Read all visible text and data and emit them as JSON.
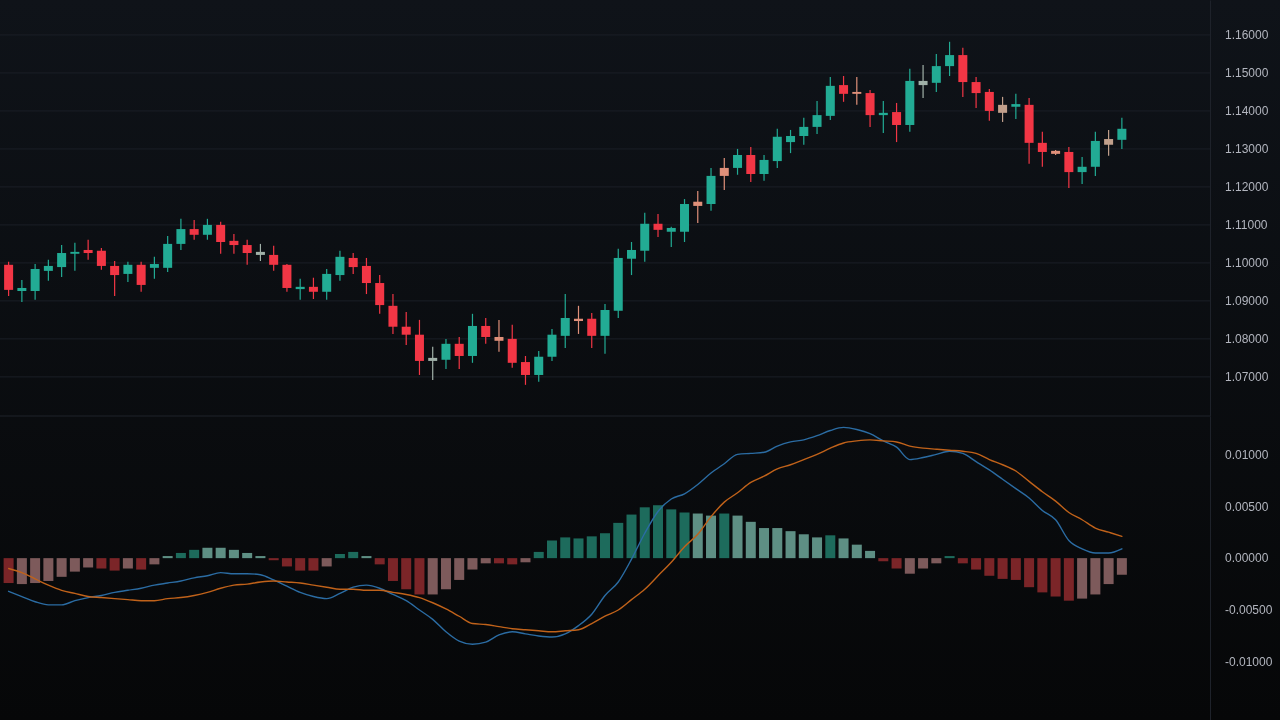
{
  "chart_data": [
    {
      "type": "candlestick",
      "categories": [
        null,
        null,
        null,
        null,
        null,
        null,
        null,
        null,
        null,
        null,
        null,
        null,
        null,
        null,
        null,
        null,
        null,
        null,
        null,
        null,
        null,
        null,
        null,
        null,
        null,
        null,
        null,
        null,
        null,
        null,
        null,
        null,
        null,
        null,
        null,
        null,
        null,
        null,
        null,
        null,
        null,
        null,
        null,
        null,
        null,
        null,
        null,
        null,
        null,
        null,
        null,
        null,
        null,
        null,
        null,
        null,
        null,
        null,
        null,
        null,
        null,
        null,
        null,
        null,
        null,
        null,
        null,
        null,
        null,
        null,
        null,
        null,
        null,
        null,
        null,
        null,
        null,
        null,
        null,
        null,
        null,
        null,
        null,
        null,
        null,
        null,
        null,
        null,
        null,
        null,
        null
      ],
      "ohlc": [
        [
          1.0995,
          1.1003,
          1.0913,
          1.0929
        ],
        [
          1.0926,
          1.0955,
          1.0897,
          1.0934
        ],
        [
          1.0926,
          1.0997,
          1.0903,
          1.0984
        ],
        [
          1.0979,
          1.1008,
          1.0953,
          1.0992
        ],
        [
          1.0989,
          1.1047,
          1.0963,
          1.1026
        ],
        [
          1.1024,
          1.1053,
          1.0979,
          1.1029
        ],
        [
          1.1034,
          1.1061,
          1.1008,
          1.1026
        ],
        [
          1.1032,
          1.1039,
          1.0982,
          1.0992
        ],
        [
          1.0992,
          1.1005,
          1.0913,
          1.0968
        ],
        [
          1.0971,
          1.1003,
          1.095,
          1.0995
        ],
        [
          1.0995,
          1.1003,
          1.0924,
          1.0942
        ],
        [
          1.0987,
          1.1016,
          1.0958,
          1.0997
        ],
        [
          1.0987,
          1.1071,
          1.0976,
          1.105
        ],
        [
          1.105,
          1.1116,
          1.1034,
          1.1089
        ],
        [
          1.1089,
          1.1113,
          1.1061,
          1.1074
        ],
        [
          1.1074,
          1.1116,
          1.1061,
          1.11
        ],
        [
          1.11,
          1.1108,
          1.1024,
          1.1055
        ],
        [
          1.1058,
          1.1076,
          1.1024,
          1.1047
        ],
        [
          1.1047,
          1.1061,
          1.0995,
          1.1026
        ],
        [
          1.1029,
          1.105,
          1.1005,
          1.1021
        ],
        [
          1.1021,
          1.1045,
          1.0979,
          1.0995
        ],
        [
          1.0995,
          1.0997,
          1.0924,
          1.0934
        ],
        [
          1.0931,
          1.0958,
          1.0903,
          1.0937
        ],
        [
          1.0937,
          1.0961,
          1.0905,
          1.0924
        ],
        [
          1.0924,
          1.0984,
          1.0903,
          1.0971
        ],
        [
          1.0968,
          1.1032,
          1.0953,
          1.1016
        ],
        [
          1.1013,
          1.1026,
          1.0971,
          1.0989
        ],
        [
          1.0992,
          1.1013,
          1.0918,
          1.0947
        ],
        [
          1.0947,
          1.0968,
          1.0866,
          1.0889
        ],
        [
          1.0887,
          1.0918,
          1.0813,
          1.0832
        ],
        [
          1.0832,
          1.0871,
          1.0784,
          1.0811
        ],
        [
          1.0811,
          1.085,
          1.0705,
          1.0742
        ],
        [
          1.0742,
          1.0779,
          1.0692,
          1.075
        ],
        [
          1.0745,
          1.08,
          1.0721,
          1.0787
        ],
        [
          1.0787,
          1.0805,
          1.0721,
          1.0755
        ],
        [
          1.0755,
          1.0866,
          1.0737,
          1.0834
        ],
        [
          1.0834,
          1.0855,
          1.0787,
          1.0805
        ],
        [
          1.0805,
          1.085,
          1.0766,
          1.0795
        ],
        [
          1.08,
          1.0837,
          1.0724,
          1.0737
        ],
        [
          1.0739,
          1.0755,
          1.0679,
          1.0705
        ],
        [
          1.0705,
          1.0768,
          1.0687,
          1.0753
        ],
        [
          1.0753,
          1.0826,
          1.0742,
          1.0811
        ],
        [
          1.0808,
          1.0918,
          1.0776,
          1.0855
        ],
        [
          1.0853,
          1.0887,
          1.0813,
          1.0847
        ],
        [
          1.0853,
          1.0868,
          1.0776,
          1.0808
        ],
        [
          1.0808,
          1.0892,
          1.0761,
          1.0876
        ],
        [
          1.0874,
          1.1037,
          1.0855,
          1.1013
        ],
        [
          1.1011,
          1.1055,
          1.0968,
          1.1034
        ],
        [
          1.1032,
          1.1132,
          1.1003,
          1.1103
        ],
        [
          1.1103,
          1.1129,
          1.1068,
          1.1087
        ],
        [
          1.1082,
          1.1095,
          1.1042,
          1.1092
        ],
        [
          1.1082,
          1.1168,
          1.1055,
          1.1155
        ],
        [
          1.1161,
          1.1189,
          1.1105,
          1.115
        ],
        [
          1.1155,
          1.125,
          1.1137,
          1.1229
        ],
        [
          1.125,
          1.1276,
          1.1192,
          1.1229
        ],
        [
          1.125,
          1.13,
          1.1232,
          1.1284
        ],
        [
          1.1284,
          1.1305,
          1.1213,
          1.1234
        ],
        [
          1.1234,
          1.1284,
          1.1216,
          1.1271
        ],
        [
          1.1268,
          1.1353,
          1.125,
          1.1332
        ],
        [
          1.1318,
          1.135,
          1.1289,
          1.1334
        ],
        [
          1.1334,
          1.1382,
          1.1311,
          1.1358
        ],
        [
          1.1358,
          1.1426,
          1.1339,
          1.1389
        ],
        [
          1.1387,
          1.1489,
          1.1376,
          1.1466
        ],
        [
          1.1468,
          1.1492,
          1.1424,
          1.1445
        ],
        [
          1.145,
          1.1489,
          1.1416,
          1.1445
        ],
        [
          1.1447,
          1.1455,
          1.1358,
          1.1389
        ],
        [
          1.1389,
          1.1426,
          1.1342,
          1.1395
        ],
        [
          1.1397,
          1.1421,
          1.1318,
          1.1363
        ],
        [
          1.1363,
          1.1511,
          1.1345,
          1.1479
        ],
        [
          1.1468,
          1.1521,
          1.1434,
          1.1479
        ],
        [
          1.1474,
          1.155,
          1.145,
          1.1518
        ],
        [
          1.1518,
          1.1582,
          1.1492,
          1.1547
        ],
        [
          1.1547,
          1.1566,
          1.1437,
          1.1476
        ],
        [
          1.1476,
          1.1489,
          1.1408,
          1.1447
        ],
        [
          1.145,
          1.1458,
          1.1374,
          1.14
        ],
        [
          1.1416,
          1.1437,
          1.1371,
          1.1395
        ],
        [
          1.1411,
          1.1445,
          1.1379,
          1.1418
        ],
        [
          1.1416,
          1.1434,
          1.1261,
          1.1316
        ],
        [
          1.1316,
          1.1345,
          1.1253,
          1.1292
        ],
        [
          1.1295,
          1.1297,
          1.1284,
          1.1287
        ],
        [
          1.1292,
          1.1305,
          1.1197,
          1.1239
        ],
        [
          1.1239,
          1.1279,
          1.1208,
          1.1253
        ],
        [
          1.1253,
          1.1345,
          1.1229,
          1.1321
        ],
        [
          1.1311,
          1.135,
          1.1282,
          1.1326
        ],
        [
          1.1324,
          1.1382,
          1.13,
          1.1353
        ],
        null,
        null,
        null,
        null,
        null,
        null
      ],
      "colors": [
        "#f23645",
        "#22ab94",
        "#22ab94",
        "#22ab94",
        "#22ab94",
        "#22ab94",
        "#f23645",
        "#f23645",
        "#f23645",
        "#22ab94",
        "#f23645",
        "#22ab94",
        "#22ab94",
        "#22ab94",
        "#f23645",
        "#22ab94",
        "#f23645",
        "#f23645",
        "#f23645",
        "#a0b0a8",
        "#f23645",
        "#f23645",
        "#22ab94",
        "#f23645",
        "#22ab94",
        "#22ab94",
        "#f23645",
        "#f23645",
        "#f23645",
        "#f23645",
        "#f23645",
        "#f23645",
        "#a0b0a8",
        "#22ab94",
        "#f23645",
        "#22ab94",
        "#f23645",
        "#e0907a",
        "#f23645",
        "#f23645",
        "#22ab94",
        "#22ab94",
        "#22ab94",
        "#e0907a",
        "#f23645",
        "#22ab94",
        "#22ab94",
        "#22ab94",
        "#22ab94",
        "#f23645",
        "#22ab94",
        "#22ab94",
        "#e0907a",
        "#22ab94",
        "#e0907a",
        "#22ab94",
        "#f23645",
        "#22ab94",
        "#22ab94",
        "#22ab94",
        "#22ab94",
        "#22ab94",
        "#22ab94",
        "#f23645",
        "#e0907a",
        "#f23645",
        "#22ab94",
        "#f23645",
        "#22ab94",
        "#a0b0a8",
        "#22ab94",
        "#22ab94",
        "#f23645",
        "#f23645",
        "#f23645",
        "#c2a08c",
        "#22ab94",
        "#f23645",
        "#f23645",
        "#e0907a",
        "#f23645",
        "#22ab94",
        "#22ab94",
        "#c2a08c",
        "#22ab94",
        null,
        null,
        null,
        null,
        null,
        null
      ],
      "ylim": [
        1.0597,
        1.1692
      ],
      "yticks": [
        {
          "value": 1.07,
          "label": "1.07000"
        },
        {
          "value": 1.08,
          "label": "1.08000"
        },
        {
          "value": 1.09,
          "label": "1.09000"
        },
        {
          "value": 1.1,
          "label": "1.10000"
        },
        {
          "value": 1.11,
          "label": "1.11000"
        },
        {
          "value": 1.12,
          "label": "1.12000"
        },
        {
          "value": 1.13,
          "label": "1.13000"
        },
        {
          "value": 1.14,
          "label": "1.14000"
        },
        {
          "value": 1.15,
          "label": "1.15000"
        },
        {
          "value": 1.16,
          "label": "1.16000"
        }
      ],
      "grid": "y",
      "tick_labels": "y"
    },
    {
      "type": "bar",
      "categories": [
        null,
        null,
        null,
        null,
        null,
        null,
        null,
        null,
        null,
        null,
        null,
        null,
        null,
        null,
        null,
        null,
        null,
        null,
        null,
        null,
        null,
        null,
        null,
        null,
        null,
        null,
        null,
        null,
        null,
        null,
        null,
        null,
        null,
        null,
        null,
        null,
        null,
        null,
        null,
        null,
        null,
        null,
        null,
        null,
        null,
        null,
        null,
        null,
        null,
        null,
        null,
        null,
        null,
        null,
        null,
        null,
        null,
        null,
        null,
        null,
        null,
        null,
        null,
        null,
        null,
        null,
        null,
        null,
        null,
        null,
        null,
        null,
        null,
        null,
        null,
        null,
        null,
        null,
        null,
        null,
        null,
        null,
        null,
        null,
        null,
        null,
        null,
        null,
        null,
        null,
        null
      ],
      "series": [
        {
          "type": "bar",
          "colors": [
            "#7b2528",
            "#7d5a5b",
            "#7d5a5b",
            "#7d5a5b",
            "#7d5a5b",
            "#7d5a5b",
            "#7d5a5b",
            "#7b2528",
            "#7b2528",
            "#7d5a5b",
            "#7b2528",
            "#7d5a5b",
            "#5e8f84",
            "#1d6b5c",
            "#1d6b5c",
            "#5e8f84",
            "#5e8f84",
            "#5e8f84",
            "#5e8f84",
            "#5e8f84",
            "#7b2528",
            "#7b2528",
            "#7b2528",
            "#7b2528",
            "#7d5a5b",
            "#1d6b5c",
            "#1d6b5c",
            "#5e8f84",
            "#7b2528",
            "#7b2528",
            "#7b2528",
            "#7b2528",
            "#7d5a5b",
            "#7d5a5b",
            "#7d5a5b",
            "#7d5a5b",
            "#7d5a5b",
            "#7b2528",
            "#7b2528",
            "#7d5a5b",
            "#1d6b5c",
            "#1d6b5c",
            "#1d6b5c",
            "#1d6b5c",
            "#1d6b5c",
            "#1d6b5c",
            "#1d6b5c",
            "#1d6b5c",
            "#1d6b5c",
            "#1d6b5c",
            "#1d6b5c",
            "#1d6b5c",
            "#5e8f84",
            "#5e8f84",
            "#1d6b5c",
            "#5e8f84",
            "#5e8f84",
            "#5e8f84",
            "#5e8f84",
            "#5e8f84",
            "#5e8f84",
            "#5e8f84",
            "#1d6b5c",
            "#5e8f84",
            "#5e8f84",
            "#5e8f84",
            "#7b2528",
            "#7b2528",
            "#7d5a5b",
            "#7d5a5b",
            "#7d5a5b",
            "#1d6b5c",
            "#7b2528",
            "#7b2528",
            "#7b2528",
            "#7b2528",
            "#7b2528",
            "#7b2528",
            "#7b2528",
            "#7b2528",
            "#7b2528",
            "#7d5a5b",
            "#7d5a5b",
            "#7d5a5b",
            "#7d5a5b",
            null,
            null,
            null,
            null,
            null,
            null
          ],
          "values": [
            -0.0024,
            -0.0025,
            -0.0024,
            -0.0022,
            -0.0018,
            -0.0013,
            -0.0009,
            -0.001,
            -0.0012,
            -0.001,
            -0.0011,
            -0.0006,
            0.0002,
            0.0005,
            0.0008,
            0.001,
            0.001,
            0.0008,
            0.0005,
            0.0002,
            -0.0002,
            -0.0008,
            -0.0012,
            -0.0012,
            -0.0008,
            0.0004,
            0.0006,
            0.0002,
            -0.0006,
            -0.0022,
            -0.003,
            -0.0035,
            -0.0035,
            -0.003,
            -0.0021,
            -0.0011,
            -0.0005,
            -0.0005,
            -0.0006,
            -0.0004,
            0.0006,
            0.0017,
            0.002,
            0.0019,
            0.0021,
            0.0024,
            0.0034,
            0.0042,
            0.0049,
            0.0051,
            0.0047,
            0.0044,
            0.0043,
            0.0041,
            0.0043,
            0.0041,
            0.0035,
            0.0029,
            0.0029,
            0.0026,
            0.0023,
            0.002,
            0.0022,
            0.0019,
            0.0013,
            0.0007,
            -0.0003,
            -0.001,
            -0.0015,
            -0.001,
            -0.0005,
            0.0002,
            -0.0005,
            -0.0011,
            -0.0017,
            -0.002,
            -0.0021,
            -0.0028,
            -0.0033,
            -0.0037,
            -0.0041,
            -0.0039,
            -0.0035,
            -0.0025,
            -0.0016,
            null,
            null,
            null,
            null,
            null,
            null
          ]
        },
        {
          "type": "line",
          "color": "#2b6ca3",
          "values": [
            -0.0032,
            -0.0037,
            -0.0042,
            -0.0045,
            -0.0045,
            -0.0041,
            -0.0038,
            -0.0036,
            -0.0033,
            -0.0031,
            -0.0029,
            -0.0026,
            -0.0024,
            -0.0022,
            -0.0019,
            -0.0017,
            -0.0014,
            -0.0015,
            -0.0015,
            -0.0016,
            -0.0021,
            -0.0027,
            -0.0033,
            -0.0037,
            -0.0039,
            -0.0034,
            -0.0028,
            -0.0026,
            -0.0029,
            -0.0035,
            -0.0041,
            -0.005,
            -0.0059,
            -0.0071,
            -0.008,
            -0.0083,
            -0.0081,
            -0.0074,
            -0.0071,
            -0.0073,
            -0.0075,
            -0.0076,
            -0.0073,
            -0.0065,
            -0.0054,
            -0.0036,
            -0.0023,
            -0.0001,
            0.0024,
            0.0045,
            0.0057,
            0.0062,
            0.0071,
            0.0082,
            0.0091,
            0.01,
            0.0101,
            0.0102,
            0.0108,
            0.0112,
            0.0114,
            0.0118,
            0.0123,
            0.0126,
            0.0124,
            0.012,
            0.0113,
            0.0107,
            0.0095,
            0.0097,
            0.01,
            0.0103,
            0.0101,
            0.0093,
            0.0085,
            0.0076,
            0.0067,
            0.0058,
            0.0046,
            0.0037,
            0.0017,
            0.0009,
            0.0005,
            0.0005,
            0.0009,
            null,
            null,
            null,
            null,
            null,
            null
          ]
        },
        {
          "type": "line",
          "color": "#c0621a",
          "values": [
            -0.001,
            -0.0014,
            -0.002,
            -0.0026,
            -0.0031,
            -0.0034,
            -0.0037,
            -0.0038,
            -0.0039,
            -0.004,
            -0.0041,
            -0.0041,
            -0.0039,
            -0.0038,
            -0.0036,
            -0.0033,
            -0.0029,
            -0.0026,
            -0.0025,
            -0.0023,
            -0.0022,
            -0.0023,
            -0.0024,
            -0.0026,
            -0.0028,
            -0.003,
            -0.003,
            -0.0031,
            -0.0031,
            -0.0033,
            -0.0035,
            -0.0038,
            -0.0043,
            -0.0049,
            -0.0056,
            -0.0063,
            -0.0064,
            -0.0066,
            -0.0068,
            -0.0069,
            -0.007,
            -0.0071,
            -0.007,
            -0.0069,
            -0.0063,
            -0.0056,
            -0.005,
            -0.004,
            -0.003,
            -0.0017,
            -0.0004,
            0.0011,
            0.0023,
            0.004,
            0.0054,
            0.0063,
            0.0073,
            0.0079,
            0.0086,
            0.009,
            0.0095,
            0.01,
            0.0106,
            0.0111,
            0.0113,
            0.0114,
            0.0113,
            0.0112,
            0.0108,
            0.0106,
            0.0105,
            0.0104,
            0.0103,
            0.0101,
            0.0095,
            0.009,
            0.0084,
            0.0074,
            0.0064,
            0.0055,
            0.0044,
            0.0037,
            0.0029,
            0.0025,
            0.0021,
            null,
            null,
            null,
            null,
            null,
            null
          ]
        }
      ],
      "ylim": [
        -0.0156,
        0.0137
      ],
      "yticks": [
        {
          "value": -0.01,
          "label": "-0.01000"
        },
        {
          "value": -0.005,
          "label": "-0.00500"
        },
        {
          "value": 0,
          "label": "0.00000"
        },
        {
          "value": 0.005,
          "label": "0.00500"
        },
        {
          "value": 0.01,
          "label": "0.01000"
        }
      ],
      "tick_labels": "y"
    }
  ]
}
